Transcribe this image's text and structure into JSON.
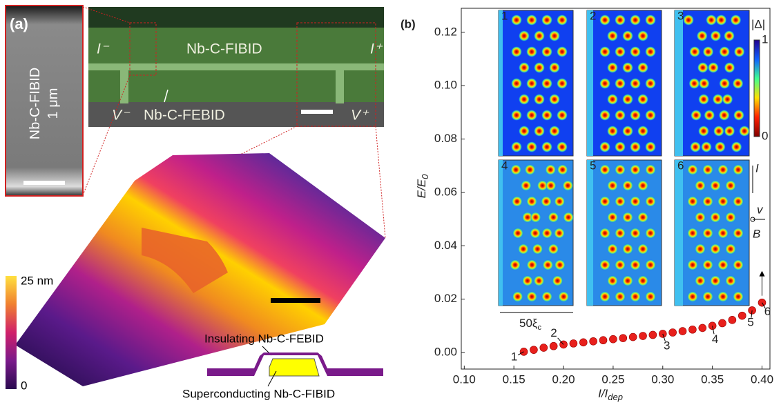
{
  "panel_a": {
    "label": "(a)",
    "sem_label": [
      "Nb-C-FIBID",
      "1 μm"
    ],
    "i_minus": "I⁻",
    "i_plus": "I⁺",
    "fibid": "Nb-C-FIBID",
    "febid": "Nb-C-FEBID",
    "v_minus": "V⁻",
    "v_plus": "V⁺",
    "height_max": "25 nm",
    "height_min": "0",
    "insulating": "Insulating Nb-C-FEBID",
    "superconducting": "Superconducting Nb-C-FIBID"
  },
  "chart_data": {
    "type": "scatter",
    "panel_label": "(b)",
    "x_label": {
      "main": "I/I",
      "sub": "dep"
    },
    "y_label": {
      "main": "E/E",
      "sub": "0"
    },
    "x": [
      0.16,
      0.17,
      0.18,
      0.19,
      0.2,
      0.21,
      0.22,
      0.23,
      0.24,
      0.25,
      0.26,
      0.27,
      0.28,
      0.29,
      0.3,
      0.31,
      0.32,
      0.33,
      0.34,
      0.35,
      0.36,
      0.37,
      0.38,
      0.39,
      0.4
    ],
    "values": [
      0.0003,
      0.001,
      0.0018,
      0.0024,
      0.003,
      0.0034,
      0.0038,
      0.0042,
      0.0046,
      0.005,
      0.0054,
      0.0058,
      0.0062,
      0.0066,
      0.007,
      0.0075,
      0.008,
      0.0086,
      0.0092,
      0.01,
      0.011,
      0.0122,
      0.0138,
      0.0158,
      0.0187
    ],
    "color": "#e8201c",
    "xlim": [
      0.097,
      0.408
    ],
    "ylim": [
      -0.0062,
      0.129
    ],
    "xticks": [
      {
        "value": 0.1,
        "label": "0.10"
      },
      {
        "value": 0.15,
        "label": "0.15"
      },
      {
        "value": 0.2,
        "label": "0.20"
      },
      {
        "value": 0.25,
        "label": "0.25"
      },
      {
        "value": 0.3,
        "label": "0.30"
      },
      {
        "value": 0.35,
        "label": "0.35"
      },
      {
        "value": 0.4,
        "label": "0.40"
      }
    ],
    "yticks": [
      {
        "value": 0,
        "label": "0.00"
      },
      {
        "value": 0.02,
        "label": "0.02"
      },
      {
        "value": 0.04,
        "label": "0.04"
      },
      {
        "value": 0.06,
        "label": "0.06"
      },
      {
        "value": 0.08,
        "label": "0.08"
      },
      {
        "value": 0.1,
        "label": "0.10"
      },
      {
        "value": 0.12,
        "label": "0.12"
      }
    ],
    "annotations": [
      "1",
      "2",
      "3",
      "4",
      "5",
      "6"
    ],
    "insets": [
      "1",
      "2",
      "3",
      "4",
      "5",
      "6"
    ],
    "colorbar_label": "|Δ|",
    "colorbar_ticks": [
      1,
      0
    ],
    "orientation_labels": [
      "I",
      "v",
      "B"
    ],
    "scale_label": {
      "main": "50ξ",
      "sub": "c"
    }
  }
}
